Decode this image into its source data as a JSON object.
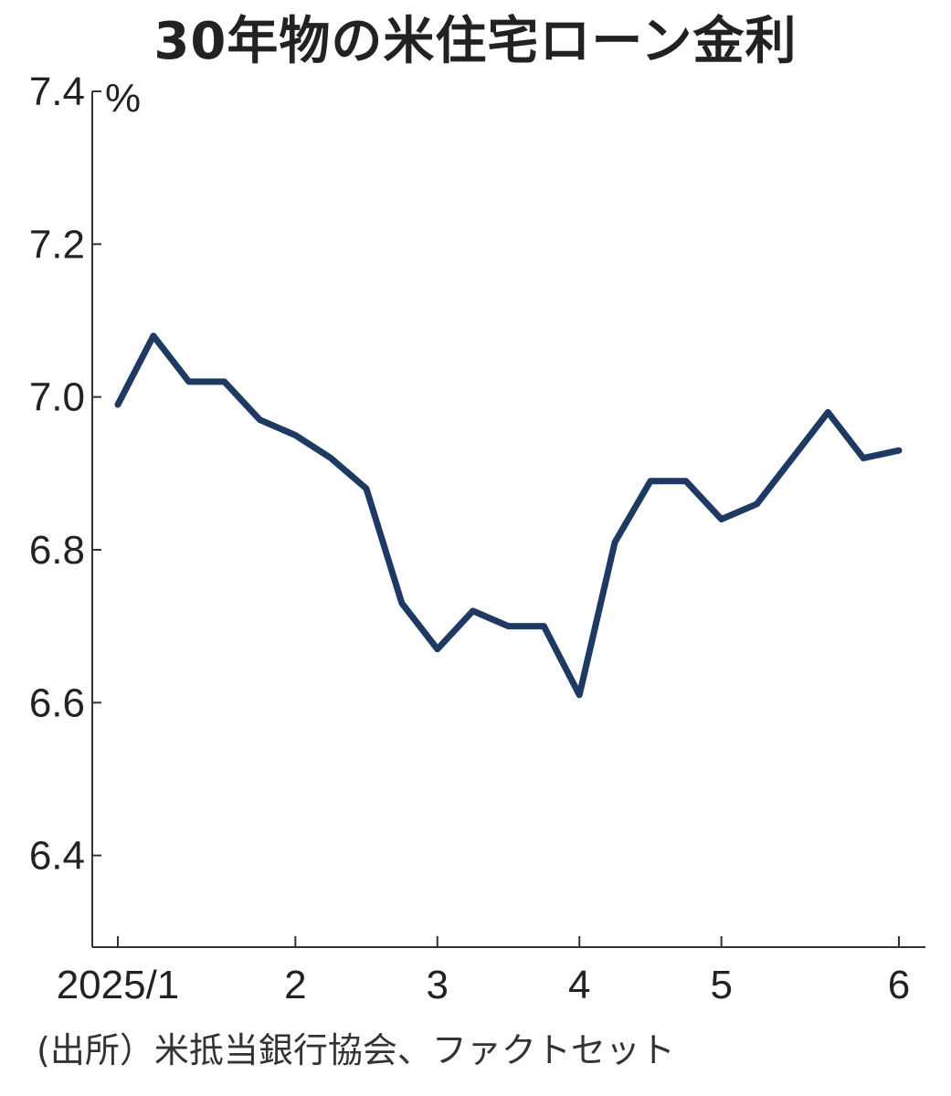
{
  "chart_data": {
    "type": "line",
    "title": "30年物の米住宅ローン金利",
    "y_unit": "%",
    "ylim": [
      6.28,
      7.4
    ],
    "y_ticks": [
      6.4,
      6.6,
      6.8,
      7.0,
      7.2,
      7.4
    ],
    "y_tick_labels": [
      "6.4",
      "6.6",
      "6.8",
      "7.0",
      "7.2",
      "7.4"
    ],
    "x_ticks": [
      "2025-01-02",
      "2025-02-06",
      "2025-03-06",
      "2025-04-03",
      "2025-05-01",
      "2025-06-05"
    ],
    "x_tick_labels": [
      "2025/1",
      "2",
      "3",
      "4",
      "5",
      "6"
    ],
    "grid": false,
    "line_color": "#1e3a63",
    "series": [
      {
        "x": [
          "2025-01-02",
          "2025-01-09",
          "2025-01-16",
          "2025-01-23",
          "2025-01-30",
          "2025-02-06",
          "2025-02-13",
          "2025-02-20",
          "2025-02-27",
          "2025-03-06",
          "2025-03-13",
          "2025-03-20",
          "2025-03-27",
          "2025-04-03",
          "2025-04-10",
          "2025-04-17",
          "2025-04-24",
          "2025-05-01",
          "2025-05-08",
          "2025-05-15",
          "2025-05-22",
          "2025-05-29",
          "2025-06-05"
        ],
        "values": [
          6.99,
          7.08,
          7.02,
          7.02,
          6.97,
          6.95,
          6.92,
          6.88,
          6.73,
          6.67,
          6.72,
          6.7,
          6.7,
          6.61,
          6.81,
          6.89,
          6.89,
          6.84,
          6.86,
          6.92,
          6.98,
          6.92,
          6.93
        ]
      }
    ]
  },
  "source_note": "(出所）米抵当銀行協会、ファクトセット"
}
